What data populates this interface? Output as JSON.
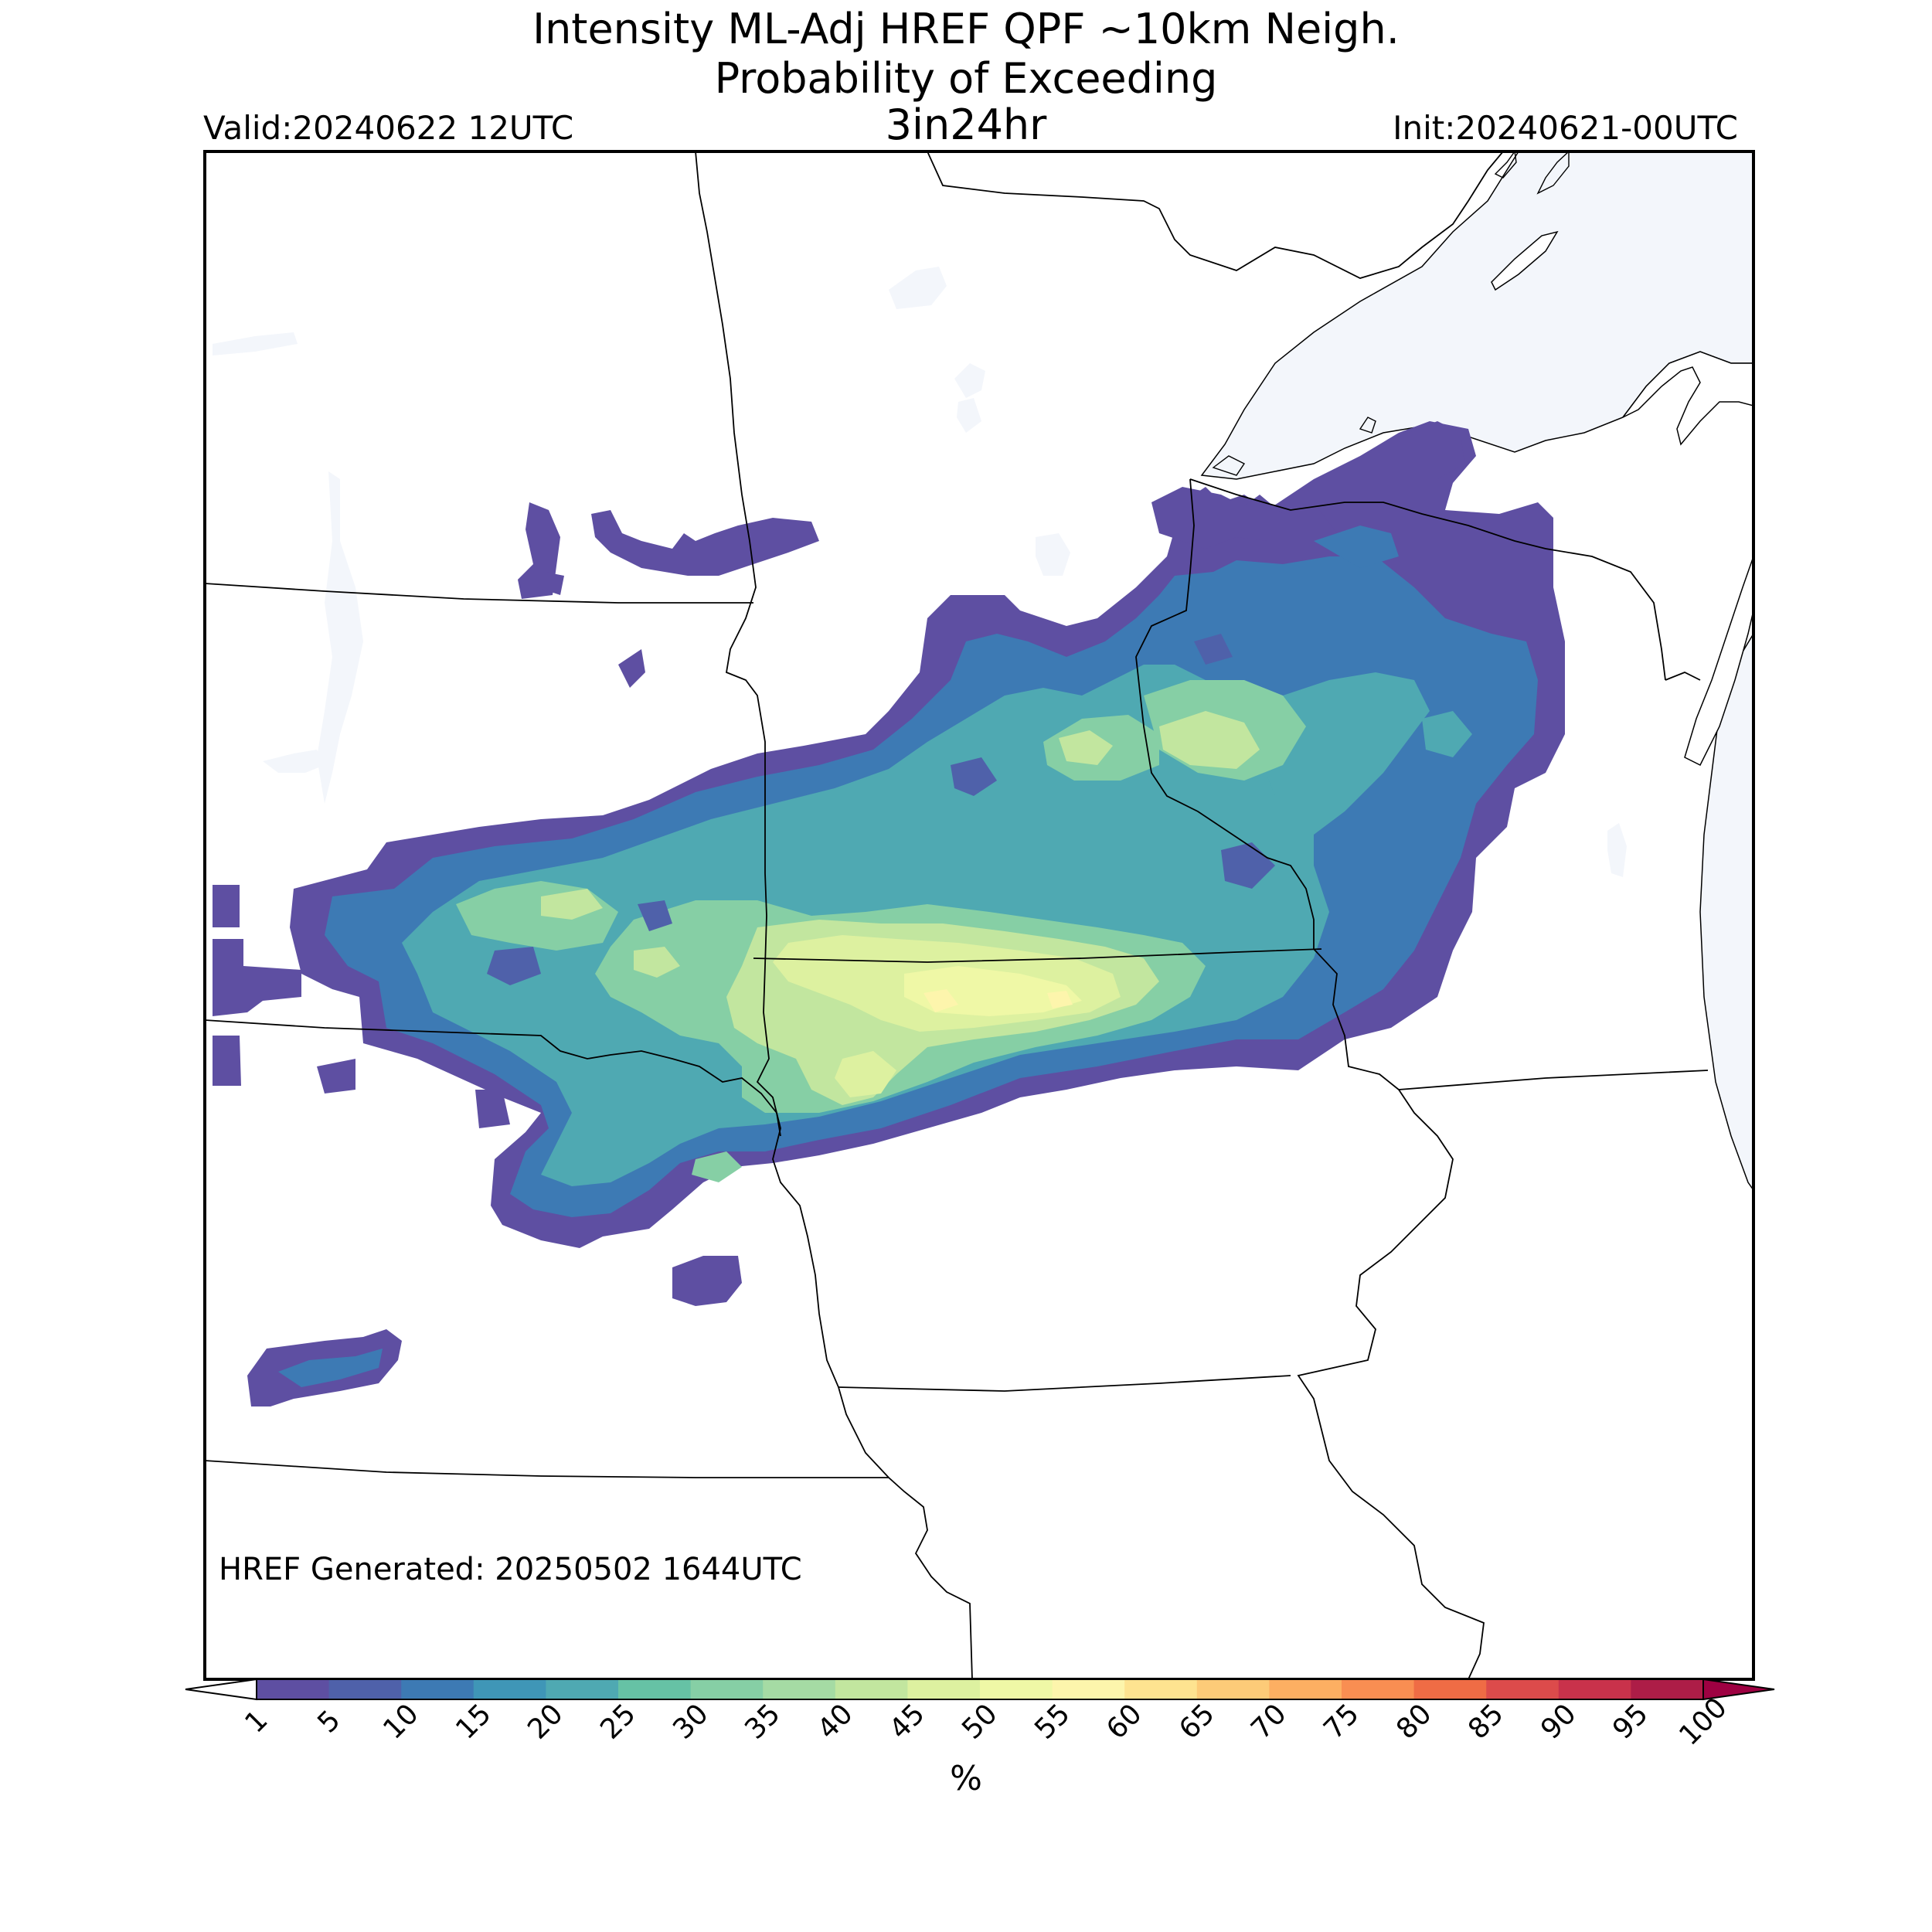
{
  "title": {
    "line1": "Intensity ML-Adj HREF QPF ~10km Neigh.",
    "line2": "Probability of Exceeding",
    "line3": "3in24hr"
  },
  "valid": "Valid:20240622 12UTC",
  "init": "Init:20240621-00UTC",
  "generated": "HREF Generated: 20250502 1644UTC",
  "colorbar": {
    "label": "%",
    "ticks": [
      "1",
      "5",
      "10",
      "15",
      "20",
      "25",
      "30",
      "35",
      "40",
      "45",
      "50",
      "55",
      "60",
      "65",
      "70",
      "75",
      "80",
      "85",
      "90",
      "95",
      "100"
    ],
    "colors": [
      "#5e4fa2",
      "#4f61aa",
      "#3d7ab4",
      "#3f96b7",
      "#4fa9b2",
      "#66c2a5",
      "#86cfa5",
      "#a5dba4",
      "#c2e69f",
      "#ddf1a0",
      "#eff8a6",
      "#fdf5ac",
      "#fee390",
      "#fdcb78",
      "#fdaf62",
      "#f98e52",
      "#ef6c45",
      "#dc4b4b",
      "#c9324b",
      "#ad1d47"
    ],
    "under_color": "#ffffff",
    "over_color": "#9e0142"
  },
  "map": {
    "water_color": "#f3f6fb",
    "border_color": "#000000"
  }
}
